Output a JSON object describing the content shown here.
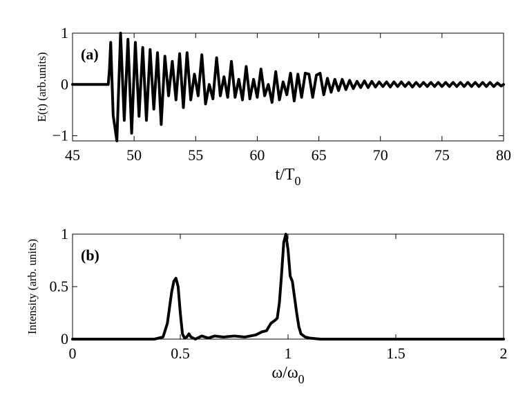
{
  "chart_data": [
    {
      "type": "line",
      "panel_label": "(a)",
      "xlabel": "t/T",
      "xlabel_sub": "0",
      "ylabel": "E(t) (arb.units)",
      "xlim": [
        45,
        80
      ],
      "ylim": [
        -1.1,
        1.0
      ],
      "xticks": [
        "45",
        "50",
        "55",
        "60",
        "65",
        "70",
        "75",
        "80"
      ],
      "yticks": [
        "-1",
        "0",
        "1"
      ],
      "grid": false,
      "series": [
        {
          "x": [
            45,
            47.9,
            48.0,
            48.1,
            48.3,
            48.6,
            48.9,
            49.2,
            49.5,
            49.8,
            50.1,
            50.4,
            50.7,
            51.0,
            51.3,
            51.6,
            51.9,
            52.2,
            52.5,
            52.8,
            53.1,
            53.4,
            53.7,
            54.0,
            54.3,
            54.6,
            54.9,
            55.2,
            55.5,
            55.8,
            56.1,
            56.4,
            56.7,
            57.0,
            57.3,
            57.6,
            57.9,
            58.2,
            58.5,
            58.8,
            59.1,
            59.4,
            59.7,
            60.0,
            60.3,
            60.6,
            60.9,
            61.2,
            61.5,
            61.8,
            62.1,
            62.4,
            62.7,
            63.0,
            63.3,
            63.6,
            63.9,
            64.2,
            64.5,
            64.8,
            65.1,
            65.4,
            65.7,
            66.0,
            66.3,
            66.6,
            66.9,
            67.2,
            67.5,
            67.8,
            68.1,
            68.4,
            68.7,
            69.0,
            69.3,
            69.6,
            69.9,
            70.2,
            70.5,
            70.8,
            71.1,
            71.4,
            71.7,
            72.0,
            72.3,
            72.6,
            72.9,
            73.2,
            73.5,
            73.8,
            74.1,
            74.4,
            74.7,
            75.0,
            75.3,
            75.6,
            75.9,
            76.2,
            76.5,
            76.8,
            77.1,
            77.4,
            77.7,
            78.0,
            78.3,
            78.6,
            78.9,
            79.2,
            79.5,
            79.8,
            80.0
          ],
          "y": [
            0,
            0,
            0.3,
            0.82,
            -0.6,
            -1.1,
            1.0,
            -0.7,
            0.88,
            -0.95,
            0.82,
            -0.62,
            0.72,
            -0.7,
            0.68,
            -0.48,
            0.62,
            -0.78,
            0.55,
            -0.22,
            0.45,
            -0.3,
            0.6,
            -0.45,
            0.62,
            -0.3,
            0.2,
            -0.22,
            0.58,
            -0.38,
            0.0,
            -0.28,
            0.52,
            -0.22,
            0.15,
            -0.25,
            0.45,
            -0.25,
            0.1,
            -0.3,
            0.35,
            -0.28,
            0.1,
            -0.25,
            0.3,
            -0.22,
            0.0,
            -0.35,
            0.25,
            -0.3,
            0.05,
            -0.2,
            0.22,
            -0.32,
            0.2,
            -0.25,
            0.22,
            0.2,
            -0.25,
            0.18,
            0.22,
            -0.2,
            0.12,
            -0.15,
            0.1,
            -0.12,
            0.1,
            -0.1,
            0.08,
            -0.08,
            0.06,
            -0.06,
            0.07,
            -0.06,
            0.06,
            -0.05,
            0.05,
            -0.04,
            0.05,
            -0.05,
            0.05,
            -0.04,
            0.05,
            -0.04,
            0.04,
            -0.05,
            0.04,
            -0.04,
            0.04,
            -0.04,
            0.04,
            -0.04,
            0.04,
            -0.04,
            0.04,
            -0.04,
            0.04,
            -0.04,
            0.04,
            -0.04,
            0.04,
            -0.04,
            0.04,
            -0.04,
            0.04,
            -0.04,
            0.04,
            -0.04,
            0.03,
            -0.03,
            0.0
          ]
        }
      ]
    },
    {
      "type": "line",
      "panel_label": "(b)",
      "xlabel": "ω/ω",
      "xlabel_sub": "0",
      "ylabel": "Intensity (arb. units)",
      "xlim": [
        0,
        2
      ],
      "ylim": [
        0,
        1
      ],
      "xticks": [
        "0",
        "0.5",
        "1",
        "1.5",
        "2"
      ],
      "yticks": [
        "0",
        "0.5",
        "1"
      ],
      "grid": false,
      "series": [
        {
          "x": [
            0,
            0.1,
            0.2,
            0.3,
            0.38,
            0.42,
            0.44,
            0.46,
            0.47,
            0.48,
            0.49,
            0.5,
            0.51,
            0.52,
            0.53,
            0.54,
            0.55,
            0.57,
            0.6,
            0.63,
            0.66,
            0.7,
            0.75,
            0.8,
            0.85,
            0.88,
            0.9,
            0.92,
            0.94,
            0.95,
            0.96,
            0.97,
            0.98,
            0.99,
            1.0,
            1.01,
            1.02,
            1.03,
            1.04,
            1.05,
            1.06,
            1.08,
            1.1,
            1.15,
            1.2,
            1.3,
            1.5,
            1.7,
            2.0
          ],
          "y": [
            0.0,
            0.0,
            0.0,
            0.0,
            0.0,
            0.02,
            0.15,
            0.45,
            0.55,
            0.58,
            0.5,
            0.25,
            0.05,
            0.01,
            0.02,
            0.05,
            0.02,
            0.0,
            0.03,
            0.01,
            0.03,
            0.02,
            0.03,
            0.02,
            0.04,
            0.07,
            0.08,
            0.15,
            0.18,
            0.2,
            0.35,
            0.62,
            0.92,
            1.0,
            0.85,
            0.6,
            0.55,
            0.4,
            0.25,
            0.12,
            0.05,
            0.02,
            0.01,
            0.0,
            0.0,
            0.0,
            0.0,
            0.0,
            0.0
          ]
        }
      ]
    }
  ]
}
